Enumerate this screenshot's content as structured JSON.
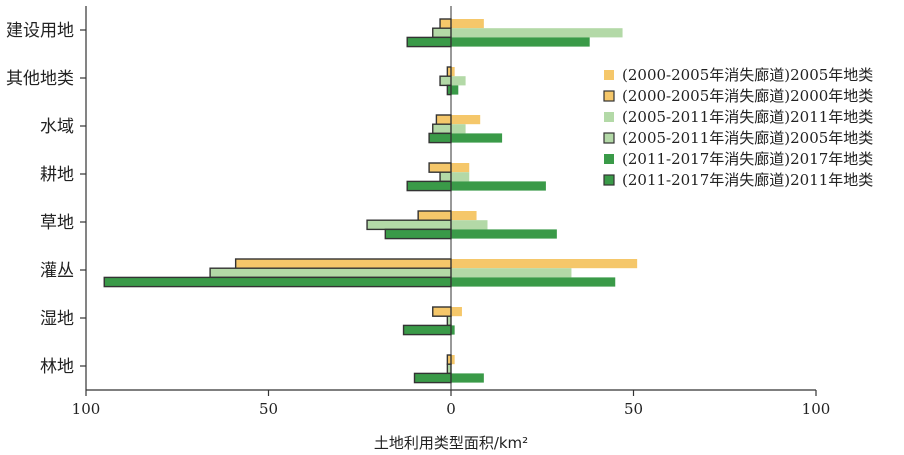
{
  "chart_data": {
    "type": "bar",
    "orientation": "horizontal",
    "categories": [
      "建设用地",
      "其他地类",
      "水域",
      "耕地",
      "草地",
      "灌丛",
      "湿地",
      "林地"
    ],
    "series": [
      {
        "name": "(2000-2005年消失廊道)2005年地类",
        "color": "#f5c76a",
        "edge": "none",
        "values": [
          9,
          1,
          8,
          5,
          7,
          51,
          3,
          1
        ]
      },
      {
        "name": "(2000-2005年消失廊道)2000年地类",
        "color": "#f5c76a",
        "edge": "#333333",
        "values": [
          -3,
          -1,
          -4,
          -6,
          -9,
          -59,
          -5,
          -1
        ]
      },
      {
        "name": "(2005-2011年消失廊道)2011年地类",
        "color": "#b3d9a7",
        "edge": "none",
        "values": [
          47,
          4,
          4,
          5,
          10,
          33,
          0,
          0
        ]
      },
      {
        "name": "(2005-2011年消失廊道)2005年地类",
        "color": "#b3d9a7",
        "edge": "#333333",
        "values": [
          -5,
          -3,
          -5,
          -3,
          -23,
          -66,
          -1,
          -1
        ]
      },
      {
        "name": "(2011-2017年消失廊道)2017年地类",
        "color": "#3a9a48",
        "edge": "none",
        "values": [
          38,
          2,
          14,
          26,
          29,
          45,
          1,
          9
        ]
      },
      {
        "name": "(2011-2017年消失廊道)2011年地类",
        "color": "#3a9a48",
        "edge": "#333333",
        "values": [
          -12,
          -1,
          -6,
          -12,
          -18,
          -95,
          -13,
          -10
        ]
      }
    ],
    "xlabel": "土地利用类型面积/km²",
    "ylabel": "",
    "xlim": [
      -100,
      100
    ],
    "xticks": [
      -100,
      -50,
      0,
      50,
      100
    ],
    "xtick_labels": [
      "100",
      "50",
      "0",
      "50",
      "100"
    ],
    "grid": false,
    "legend_position": "right"
  }
}
